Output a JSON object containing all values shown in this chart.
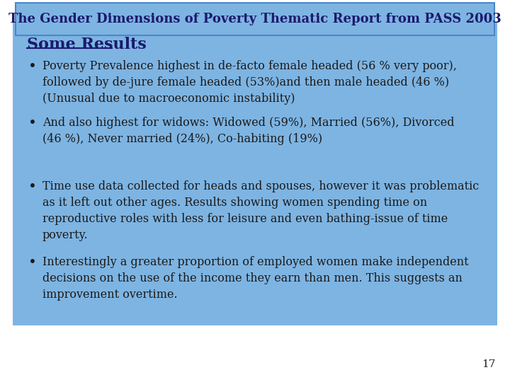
{
  "title": "The Gender Dimensions of Poverty Thematic Report from PASS 2003",
  "section_heading": "Some Results",
  "bullets": [
    "Poverty Prevalence highest in de-facto female headed (56 % very poor),\nfollowed by de-jure female headed (53%)and then male headed (46 %)\n(Unusual due to macroeconomic instability)",
    "And also highest for widows: Widowed (59%), Married (56%), Divorced\n(46 %), Never married (24%), Co-habiting (19%)",
    "Time use data collected for heads and spouses, however it was problematic\nas it left out other ages. Results showing women spending time on\nreproductive roles with less for leisure and even bathing-issue of time\npoverty.",
    "Interestingly a greater proportion of employed women make independent\ndecisions on the use of the income they earn than men. This suggests an\nimprovement overtime."
  ],
  "page_number": "17",
  "bg_color": "#ffffff",
  "slide_bg_color": "#7eb4e2",
  "title_box_color": "#7eb4e2",
  "title_box_border_color": "#4a86c8",
  "title_text_color": "#1a1a6e",
  "heading_text_color": "#1a1a6e",
  "bullet_text_color": "#1a1a1a",
  "page_num_color": "#1a1a1a",
  "title_fontsize": 13,
  "heading_fontsize": 16,
  "bullet_fontsize": 11.5
}
